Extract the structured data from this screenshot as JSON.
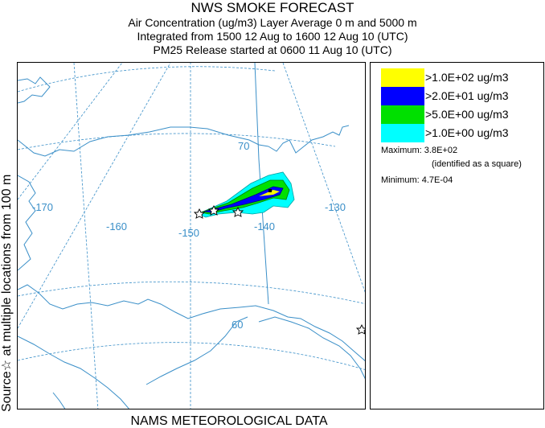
{
  "header": {
    "title": "NWS SMOKE FORECAST",
    "line2": "Air Concentration (ug/m3) Layer Average    0 m and  5000 m",
    "line3": "Integrated from 1500 12 Aug to 1600 12 Aug 10 (UTC)",
    "line4": "PM25 Release started at 0600 11 Aug 10 (UTC)"
  },
  "side_label": "Source☆ at multiple locations from 100 m",
  "footer": "NAMS METEOROLOGICAL DATA",
  "map": {
    "longitude_labels": [
      "-170",
      "-160",
      "-150",
      "-140",
      "-130"
    ],
    "latitude_labels": [
      "70",
      "60"
    ],
    "colors": {
      "graticule": "#3a8fc8",
      "coast": "#3a8fc8",
      "label": "#3a8fc8"
    }
  },
  "legend": {
    "entries": [
      {
        "label": ">1.0E+02 ug/m3",
        "color": "#ffff00"
      },
      {
        "label": ">2.0E+01 ug/m3",
        "color": "#0000ff"
      },
      {
        "label": ">5.0E+00 ug/m3",
        "color": "#00e000"
      },
      {
        "label": ">1.0E+00 ug/m3",
        "color": "#00ffff"
      }
    ],
    "maximum": "Maximum: 3.8E+02",
    "maximum_note": "(identified as a square)",
    "minimum": "Minimum: 4.7E-04"
  }
}
